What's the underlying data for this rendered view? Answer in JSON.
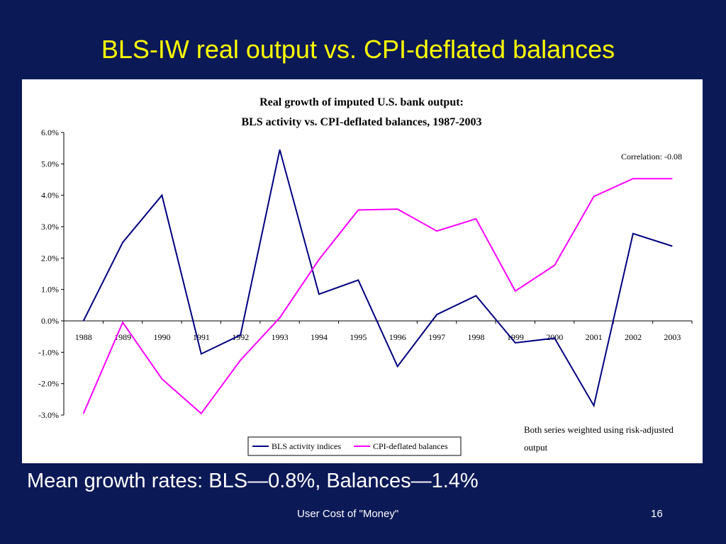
{
  "slide": {
    "title": "BLS-IW real output vs. CPI-deflated balances",
    "mean_text": "Mean growth rates:  BLS—0.8%, Balances—1.4%",
    "footer_text": "User Cost of \"Money\"",
    "page_number": "16",
    "background_color": "#0b1957",
    "title_color": "#ffff00"
  },
  "chart_data": {
    "type": "line",
    "title": "Real growth of imputed U.S. bank output:",
    "subtitle": "BLS activity vs. CPI-deflated balances, 1987-2003",
    "categories": [
      "1988",
      "1989",
      "1990",
      "1991",
      "1992",
      "1993",
      "1994",
      "1995",
      "1996",
      "1997",
      "1998",
      "1999",
      "2000",
      "2001",
      "2002",
      "2003"
    ],
    "y_ticks": [
      "-3.0%",
      "-2.0%",
      "-1.0%",
      "0.0%",
      "1.0%",
      "2.0%",
      "3.0%",
      "4.0%",
      "5.0%",
      "6.0%"
    ],
    "ylim": [
      -3.0,
      6.0
    ],
    "y_unit": "%",
    "grid": false,
    "legend_position": "bottom-center",
    "series": [
      {
        "name": "BLS activity indices",
        "color": "#000080",
        "values": [
          0.0,
          2.5,
          4.0,
          -1.05,
          -0.45,
          5.45,
          0.85,
          1.3,
          -1.45,
          0.2,
          0.8,
          -0.7,
          -0.55,
          -2.7,
          2.78,
          2.38
        ]
      },
      {
        "name": "CPI-deflated balances",
        "color": "#ff00ff",
        "values": [
          -2.95,
          -0.05,
          -1.85,
          -2.95,
          -1.25,
          0.1,
          1.95,
          3.53,
          3.56,
          2.86,
          3.25,
          0.95,
          1.77,
          3.96,
          4.53,
          4.53
        ]
      }
    ],
    "annotations": {
      "correlation": "Correlation: -0.08",
      "note_line1": "Both series weighted using risk-adjusted",
      "note_line2": "output"
    }
  }
}
